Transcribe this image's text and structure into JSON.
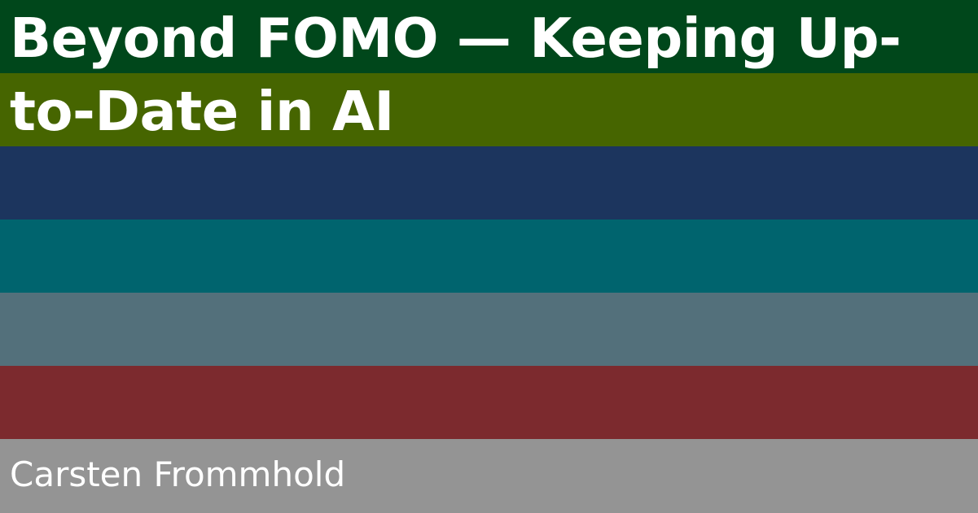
{
  "title_lines": [
    "Beyond FOMO — Keeping Up-",
    "to-Date in AI"
  ],
  "author": "Carsten Frommhold",
  "colors": {
    "stripe_1": "#00471B",
    "stripe_2": "#466500",
    "stripe_3": "#1C355E",
    "stripe_4": "#00646E",
    "stripe_5": "#53707B",
    "stripe_6": "#7C2A2E",
    "stripe_7": "#949494",
    "text": "#FFFFFF"
  }
}
